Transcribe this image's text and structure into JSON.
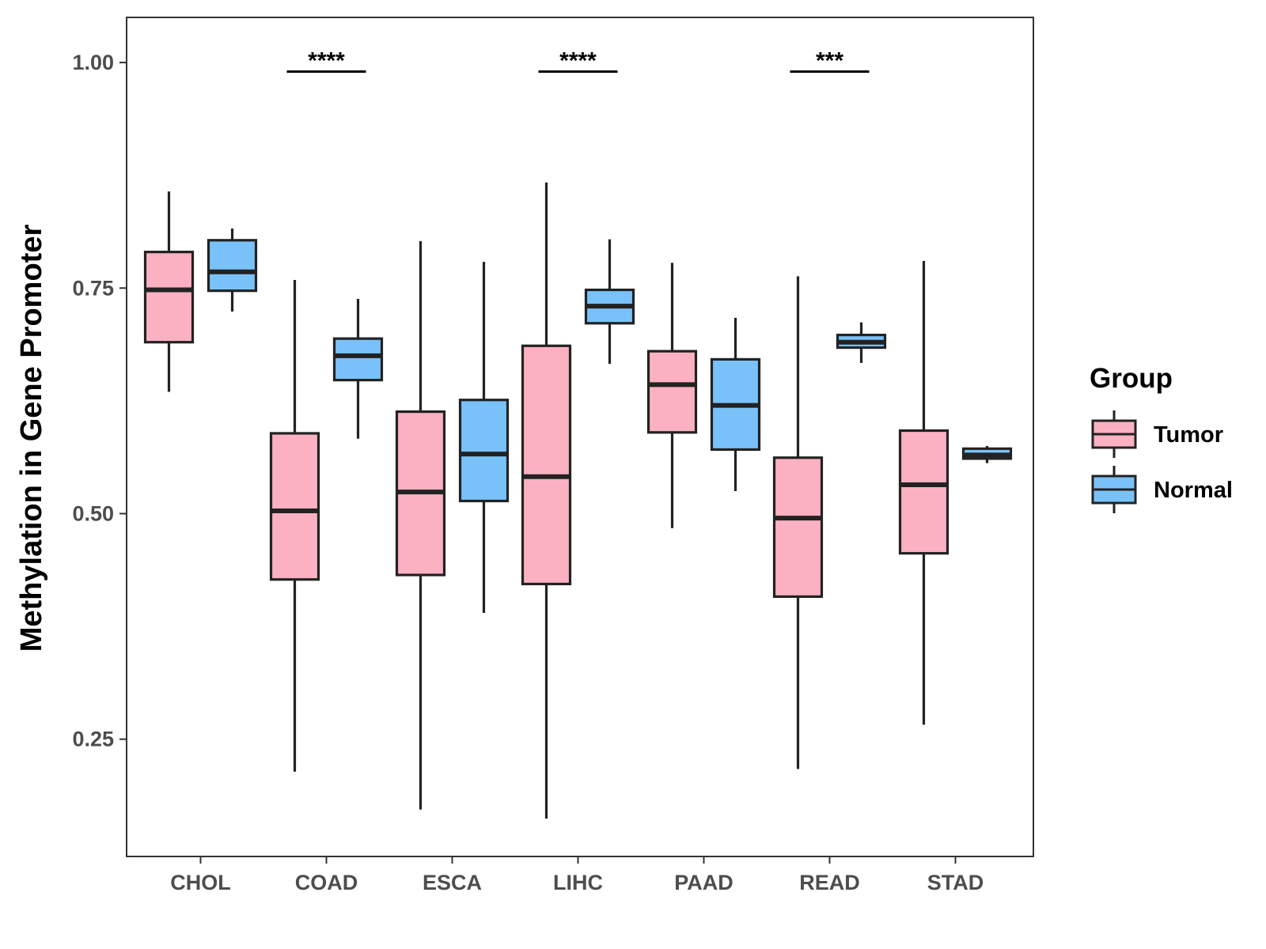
{
  "chart_data": {
    "type": "boxplot",
    "title": "",
    "xlabel": "",
    "ylabel": "Methylation in Gene Promoter",
    "ylim": [
      0.12,
      1.05
    ],
    "yticks": [
      "0.25",
      "0.50",
      "0.75",
      "1.00"
    ],
    "ytick_values": [
      0.25,
      0.5,
      0.75,
      1.0
    ],
    "categories": [
      "CHOL",
      "COAD",
      "ESCA",
      "LIHC",
      "PAAD",
      "READ",
      "STAD"
    ],
    "legend": {
      "title": "Group",
      "entries": [
        {
          "name": "Tumor",
          "color": "#fbb1c2"
        },
        {
          "name": "Normal",
          "color": "#79c2f9"
        }
      ]
    },
    "series": [
      {
        "name": "Tumor",
        "color": "#fbb1c2",
        "boxes": [
          {
            "category": "CHOL",
            "min": 0.635,
            "q1": 0.69,
            "median": 0.748,
            "q3": 0.79,
            "max": 0.857
          },
          {
            "category": "COAD",
            "min": 0.214,
            "q1": 0.427,
            "median": 0.503,
            "q3": 0.589,
            "max": 0.759
          },
          {
            "category": "ESCA",
            "min": 0.172,
            "q1": 0.432,
            "median": 0.524,
            "q3": 0.613,
            "max": 0.802
          },
          {
            "category": "LIHC",
            "min": 0.162,
            "q1": 0.422,
            "median": 0.541,
            "q3": 0.686,
            "max": 0.867
          },
          {
            "category": "PAAD",
            "min": 0.484,
            "q1": 0.59,
            "median": 0.643,
            "q3": 0.68,
            "max": 0.778
          },
          {
            "category": "READ",
            "min": 0.217,
            "q1": 0.408,
            "median": 0.495,
            "q3": 0.562,
            "max": 0.763
          },
          {
            "category": "STAD",
            "min": 0.266,
            "q1": 0.456,
            "median": 0.532,
            "q3": 0.592,
            "max": 0.78
          }
        ]
      },
      {
        "name": "Normal",
        "color": "#79c2f9",
        "boxes": [
          {
            "category": "CHOL",
            "min": 0.724,
            "q1": 0.747,
            "median": 0.768,
            "q3": 0.803,
            "max": 0.816
          },
          {
            "category": "COAD",
            "min": 0.583,
            "q1": 0.648,
            "median": 0.675,
            "q3": 0.694,
            "max": 0.738
          },
          {
            "category": "ESCA",
            "min": 0.39,
            "q1": 0.514,
            "median": 0.566,
            "q3": 0.626,
            "max": 0.779
          },
          {
            "category": "LIHC",
            "min": 0.666,
            "q1": 0.711,
            "median": 0.73,
            "q3": 0.748,
            "max": 0.804
          },
          {
            "category": "PAAD",
            "min": 0.525,
            "q1": 0.571,
            "median": 0.62,
            "q3": 0.671,
            "max": 0.717
          },
          {
            "category": "READ",
            "min": 0.667,
            "q1": 0.684,
            "median": 0.69,
            "q3": 0.698,
            "max": 0.712
          },
          {
            "category": "STAD",
            "min": 0.556,
            "q1": 0.561,
            "median": 0.565,
            "q3": 0.572,
            "max": 0.575
          }
        ]
      }
    ],
    "annotations": [
      {
        "category": "COAD",
        "label": "****",
        "y": 0.99
      },
      {
        "category": "LIHC",
        "label": "****",
        "y": 0.99
      },
      {
        "category": "READ",
        "label": "***",
        "y": 0.99
      }
    ],
    "colors": {
      "outline": "#222222",
      "axis": "#333333"
    }
  }
}
